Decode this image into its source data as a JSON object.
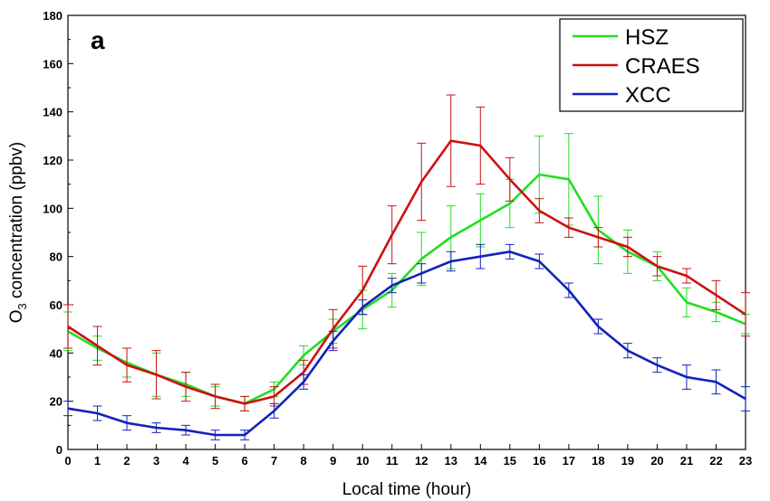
{
  "chart_data": {
    "type": "line",
    "panel_label": "a",
    "xlabel": "Local time (hour)",
    "ylabel_prefix": "O",
    "ylabel_subscript": "3",
    "ylabel_suffix": " concentration (ppbv)",
    "xlim": [
      0,
      23
    ],
    "ylim": [
      0,
      180
    ],
    "x_ticks": [
      0,
      1,
      2,
      3,
      4,
      5,
      6,
      7,
      8,
      9,
      10,
      11,
      12,
      13,
      14,
      15,
      16,
      17,
      18,
      19,
      20,
      21,
      22,
      23
    ],
    "y_ticks": [
      0,
      20,
      40,
      60,
      80,
      100,
      120,
      140,
      160,
      180
    ],
    "grid": false,
    "legend_position": "top-right",
    "x": [
      0,
      1,
      2,
      3,
      4,
      5,
      6,
      7,
      8,
      9,
      10,
      11,
      12,
      13,
      14,
      15,
      16,
      17,
      18,
      19,
      20,
      21,
      22,
      23
    ],
    "series": [
      {
        "name": "HSZ",
        "color": "#22dd22",
        "values": [
          49,
          42,
          36,
          31,
          27,
          22,
          19,
          25,
          39,
          49,
          58,
          66,
          79,
          88,
          95,
          102,
          114,
          112,
          91,
          82,
          76,
          61,
          57,
          52
        ],
        "errors": [
          8,
          5,
          6,
          9,
          5,
          4,
          3,
          3,
          4,
          5,
          8,
          7,
          11,
          13,
          11,
          10,
          16,
          19,
          14,
          9,
          6,
          6,
          4,
          4
        ]
      },
      {
        "name": "CRAES",
        "color": "#cc1111",
        "values": [
          51,
          43,
          35,
          31,
          26,
          22,
          19,
          22,
          32,
          50,
          66,
          89,
          111,
          128,
          126,
          112,
          99,
          92,
          88,
          84,
          76,
          72,
          64,
          56
        ],
        "errors": [
          9,
          8,
          7,
          10,
          6,
          5,
          3,
          4,
          5,
          8,
          10,
          12,
          16,
          19,
          16,
          9,
          5,
          4,
          4,
          4,
          4,
          3,
          6,
          9
        ]
      },
      {
        "name": "XCC",
        "color": "#1122bb",
        "values": [
          17,
          15,
          11,
          9,
          8,
          6,
          6,
          16,
          28,
          45,
          59,
          68,
          73,
          78,
          80,
          82,
          78,
          66,
          51,
          41,
          35,
          30,
          28,
          21
        ],
        "errors": [
          3,
          3,
          3,
          2,
          2,
          2,
          2,
          3,
          3,
          4,
          3,
          3,
          4,
          4,
          5,
          3,
          3,
          3,
          3,
          3,
          3,
          5,
          5,
          5
        ]
      }
    ]
  }
}
